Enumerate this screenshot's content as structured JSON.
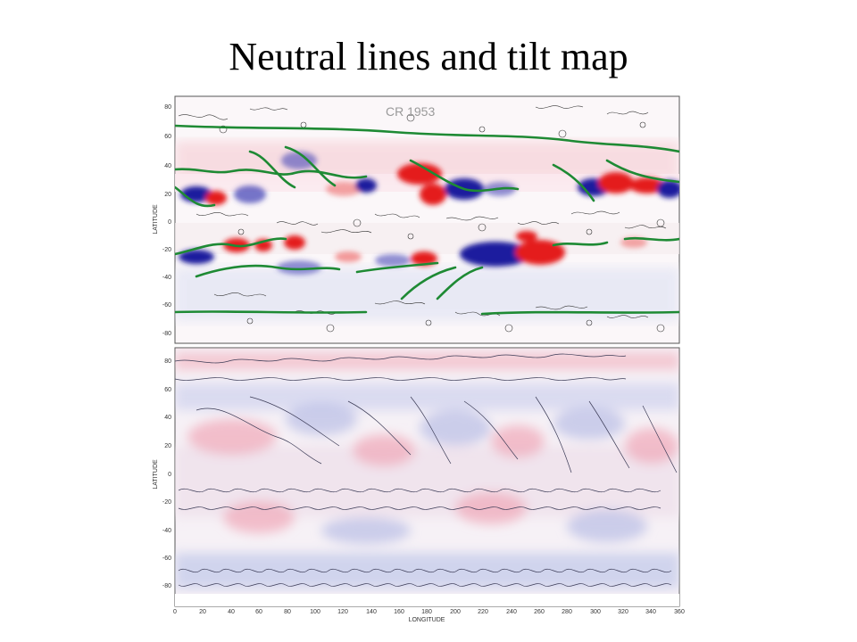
{
  "slide": {
    "title": "Neutral lines and tilt map"
  },
  "figure": {
    "top_panel": {
      "label": "CR 1953",
      "ylabel": "LATITUDE",
      "yticks": [
        "80",
        "60",
        "40",
        "20",
        "0",
        "-20",
        "-40",
        "-60",
        "-80"
      ]
    },
    "bottom_panel": {
      "ylabel": "LATITUDE",
      "yticks": [
        "80",
        "60",
        "40",
        "20",
        "0",
        "-20",
        "-40",
        "-60",
        "-80"
      ]
    },
    "xlabel": "LONGITUDE",
    "xticks": [
      "0",
      "20",
      "40",
      "60",
      "80",
      "100",
      "120",
      "140",
      "160",
      "180",
      "200",
      "220",
      "240",
      "260",
      "280",
      "300",
      "320",
      "340",
      "360"
    ],
    "colors": {
      "positive": "#e41a1c",
      "negative": "#1a1a9e",
      "neutral_line": "#1e8a34",
      "contour": "#333333"
    }
  }
}
